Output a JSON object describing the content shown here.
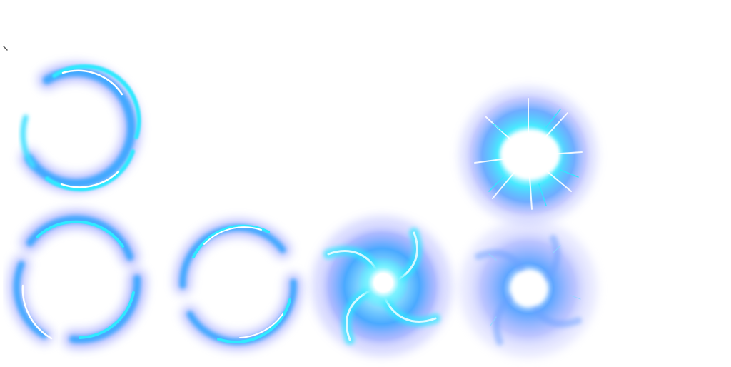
{
  "sprite_sheet": {
    "background": "#ffffff",
    "palette": {
      "glow_outer": "#7f87ff",
      "glow_mid": "#3fa8ff",
      "core_cyan": "#2fe9ff",
      "highlight": "#ffffff"
    },
    "frames": [
      {
        "name": "ring-open-1",
        "kind": "ring",
        "rotation": 0
      },
      {
        "name": "ring-open-2",
        "kind": "ring",
        "rotation": 120
      },
      {
        "name": "ring-open-3",
        "kind": "ring",
        "rotation": 210
      },
      {
        "name": "vortex-swirl",
        "kind": "vortex"
      },
      {
        "name": "energy-burst",
        "kind": "burst"
      },
      {
        "name": "vortex-fade",
        "kind": "fade"
      }
    ]
  }
}
